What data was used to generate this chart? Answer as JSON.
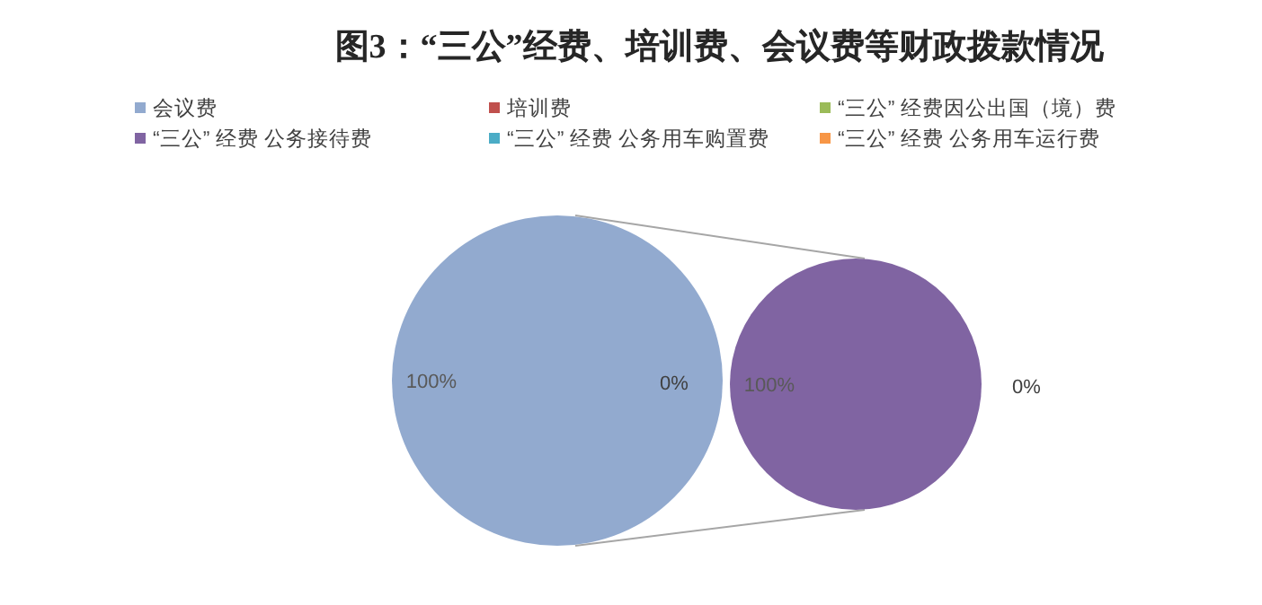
{
  "chart_data": [
    {
      "type": "pie",
      "title": "图3：“三公”经费、培训费、会议费等财政拨款情况",
      "legend": "top",
      "categories": [
        "会议费",
        "培训费",
        "“三公” 经费因公出国（境）费",
        "“三公” 经费 公务接待费",
        "“三公” 经费 公务用车购置费",
        "“三公” 经费 公务用车运行费"
      ],
      "colors": [
        "#92aacf",
        "#c0504d",
        "#9bbb59",
        "#8064a2",
        "#4bacc6",
        "#f79646"
      ],
      "values": [
        100,
        0,
        0,
        0,
        0,
        0
      ],
      "value_labels": [
        "100%",
        null,
        null,
        null,
        null,
        "0%"
      ]
    },
    {
      "type": "pie",
      "categories": [
        null,
        null
      ],
      "colors": [
        "#8064a2",
        "#4bacc6"
      ],
      "values": [
        100,
        0
      ],
      "value_labels": [
        "100%",
        "0%"
      ]
    }
  ]
}
